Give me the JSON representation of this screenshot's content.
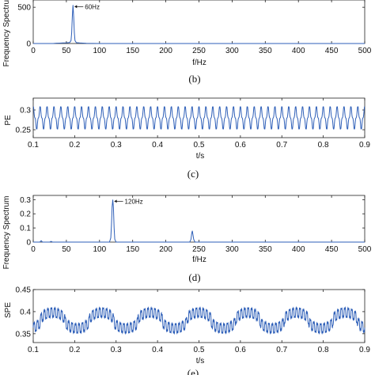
{
  "chart_data": [
    {
      "type": "line",
      "title": "",
      "xlabel": "f/Hz",
      "ylabel": "Frequency Spectrum",
      "xlim": [
        0,
        500
      ],
      "ylim": [
        0,
        600
      ],
      "xticks": [
        "0",
        "50",
        "100",
        "150",
        "200",
        "250",
        "300",
        "350",
        "400",
        "450",
        "500"
      ],
      "yticks": [
        "0",
        "500"
      ],
      "caption": "(b)",
      "series": [
        {
          "color": "#2e5fb8",
          "x": [
            0,
            30,
            35,
            40,
            45,
            50,
            55,
            57,
            58,
            59,
            60,
            61,
            62,
            63,
            65,
            70,
            75,
            80,
            90,
            100,
            150,
            200,
            300,
            400,
            500
          ],
          "y": [
            0,
            0,
            4,
            6,
            8,
            10,
            14,
            40,
            150,
            380,
            530,
            370,
            150,
            40,
            12,
            8,
            6,
            3,
            1,
            0,
            0,
            0,
            0,
            0,
            0
          ]
        }
      ],
      "annotations": [
        {
          "text": "60Hz",
          "x": 60,
          "y": 530
        }
      ]
    },
    {
      "type": "line",
      "title": "",
      "xlabel": "t/s",
      "ylabel": "PE",
      "xlim": [
        0.1,
        0.9
      ],
      "ylim": [
        0.23,
        0.33
      ],
      "xticks": [
        "0.1",
        "0.2",
        "0.3",
        "0.4",
        "0.5",
        "0.6",
        "0.7",
        "0.8",
        "0.9"
      ],
      "yticks": [
        "0.25",
        "0.3"
      ],
      "caption": "(c)",
      "signal": {
        "mean": 0.28,
        "amplitude": 0.028,
        "frequency_hz": 60,
        "range": [
          0.252,
          0.308
        ]
      }
    },
    {
      "type": "line",
      "title": "",
      "xlabel": "f/Hz",
      "ylabel": "Frequency Spectrum",
      "xlim": [
        0,
        500
      ],
      "ylim": [
        0,
        0.33
      ],
      "xticks": [
        "0",
        "50",
        "100",
        "150",
        "200",
        "250",
        "300",
        "350",
        "400",
        "450",
        "500"
      ],
      "yticks": [
        "0",
        "0.1",
        "0.2",
        "0.3"
      ],
      "caption": "(d)",
      "series": [
        {
          "color": "#2e5fb8",
          "x": [
            0,
            10,
            12,
            14,
            25,
            27,
            29,
            40,
            100,
            115,
            117,
            118,
            119,
            120,
            121,
            122,
            123,
            125,
            200,
            236,
            238,
            239,
            240,
            241,
            242,
            244,
            300,
            400,
            500
          ],
          "y": [
            0,
            0,
            0.01,
            0,
            0,
            0.005,
            0,
            0,
            0,
            0,
            0.03,
            0.12,
            0.25,
            0.3,
            0.24,
            0.1,
            0.02,
            0,
            0,
            0,
            0.02,
            0.06,
            0.08,
            0.05,
            0.02,
            0,
            0,
            0,
            0
          ]
        }
      ],
      "annotations": [
        {
          "text": "120Hz",
          "x": 120,
          "y": 0.3
        }
      ]
    },
    {
      "type": "line",
      "title": "",
      "xlabel": "t/s",
      "ylabel": "SPE",
      "xlim": [
        0.1,
        0.9
      ],
      "ylim": [
        0.33,
        0.45
      ],
      "xticks": [
        "0.1",
        "0.2",
        "0.3",
        "0.4",
        "0.5",
        "0.6",
        "0.7",
        "0.8",
        "0.9"
      ],
      "yticks": [
        "0.35",
        "0.4",
        "0.45"
      ],
      "caption": "(e)",
      "signal": {
        "mean": 0.38,
        "carrier_amplitude": 0.012,
        "carrier_hz": 120,
        "envelope_amplitude": 0.018,
        "envelope_hz": 8.5,
        "range": [
          0.345,
          0.415
        ]
      }
    }
  ]
}
